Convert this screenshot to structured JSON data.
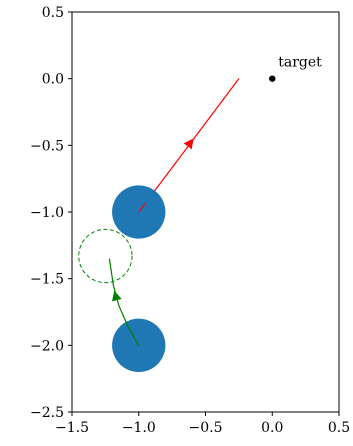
{
  "chart_data": {
    "type": "scatter",
    "title": "",
    "xlabel": "",
    "ylabel": "",
    "xlim": [
      -1.5,
      0.5
    ],
    "ylim": [
      -2.5,
      0.5
    ],
    "grid": false,
    "xticks": [
      -1.5,
      -1.0,
      -0.5,
      0.0,
      0.5
    ],
    "xtick_labels": [
      "−1.5",
      "−1.0",
      "−0.5",
      "0.0",
      "0.5"
    ],
    "yticks": [
      0.5,
      0.0,
      -0.5,
      -1.0,
      -1.5,
      -2.0,
      -2.5
    ],
    "ytick_labels": [
      "0.5",
      "0.0",
      "−0.5",
      "−1.0",
      "−1.5",
      "−2.0",
      "−2.5"
    ],
    "colors": {
      "agent": "#1f77b4",
      "red_path": "#ff0000",
      "green_path": "#008000",
      "target": "#000000"
    },
    "agents": [
      {
        "x": -1.0,
        "y": -1.0,
        "radius": 0.2
      },
      {
        "x": -1.0,
        "y": -2.0,
        "radius": 0.2
      }
    ],
    "target": {
      "x": 0.0,
      "y": 0.0,
      "label": "target"
    },
    "red_path": {
      "points": [
        [
          -1.0,
          -1.0
        ],
        [
          -0.25,
          0.0
        ]
      ],
      "arrow_at": [
        -0.62,
        -0.49
      ]
    },
    "green_path": {
      "points": [
        [
          -1.0,
          -2.0
        ],
        [
          -1.08,
          -1.86
        ],
        [
          -1.15,
          -1.7
        ],
        [
          -1.19,
          -1.55
        ],
        [
          -1.22,
          -1.35
        ]
      ],
      "arrow_at": [
        -1.17,
        -1.64
      ]
    },
    "dashed_circle": {
      "x": -1.25,
      "y": -1.33,
      "radius": 0.2
    }
  }
}
